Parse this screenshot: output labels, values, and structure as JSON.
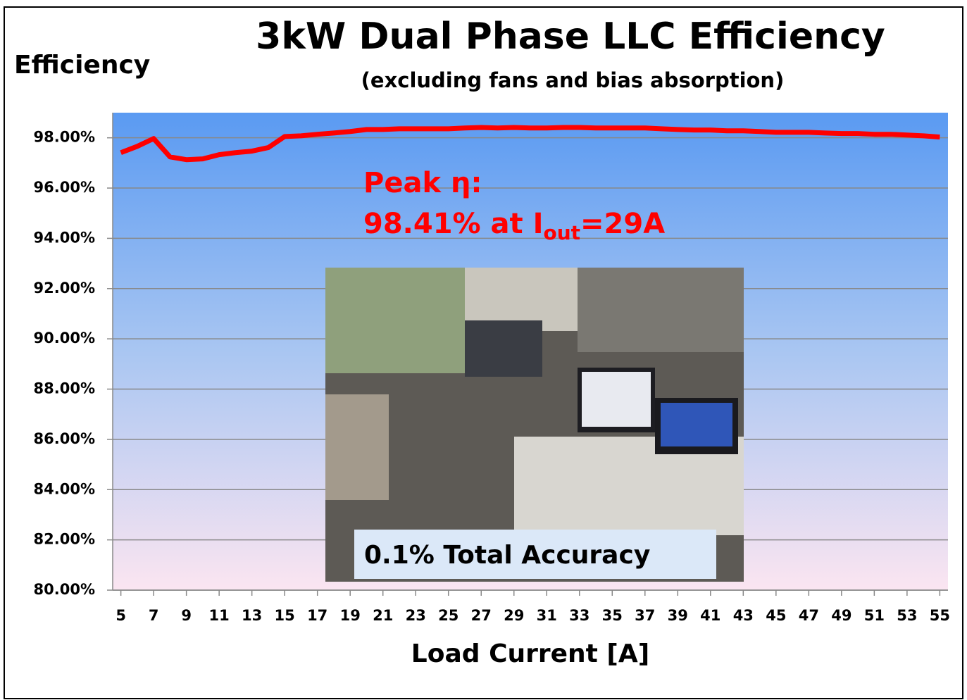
{
  "chart_data": {
    "type": "line",
    "title": "3kW Dual Phase LLC Efficiency",
    "subtitle": "(excluding fans and bias absorption)",
    "y_label": "Efficiency",
    "x_label": "Load Current [A]",
    "annotations": {
      "peak_label": "Peak η:",
      "peak_value": "98.41% at I",
      "peak_sub": "out",
      "peak_end": "=29A",
      "photo_caption": "0.1% Total Accuracy"
    },
    "x": [
      5,
      6,
      7,
      8,
      9,
      10,
      11,
      12,
      13,
      14,
      15,
      16,
      17,
      18,
      19,
      20,
      21,
      22,
      23,
      24,
      25,
      26,
      27,
      28,
      29,
      30,
      31,
      32,
      33,
      34,
      35,
      36,
      37,
      38,
      39,
      40,
      41,
      42,
      43,
      44,
      45,
      46,
      47,
      48,
      49,
      50,
      51,
      52,
      53,
      54,
      55
    ],
    "series": [
      {
        "name": "Efficiency",
        "color": "#ff0000",
        "values": [
          97.41,
          97.66,
          97.97,
          97.24,
          97.13,
          97.16,
          97.33,
          97.41,
          97.47,
          97.61,
          98.05,
          98.08,
          98.14,
          98.19,
          98.25,
          98.33,
          98.33,
          98.36,
          98.36,
          98.36,
          98.36,
          98.39,
          98.41,
          98.39,
          98.41,
          98.39,
          98.39,
          98.41,
          98.41,
          98.39,
          98.39,
          98.39,
          98.39,
          98.36,
          98.33,
          98.31,
          98.31,
          98.28,
          98.28,
          98.25,
          98.22,
          98.22,
          98.22,
          98.19,
          98.17,
          98.17,
          98.14,
          98.14,
          98.11,
          98.08,
          98.03
        ]
      }
    ],
    "xlim": [
      4.5,
      55.5
    ],
    "xticks": [
      5,
      7,
      9,
      11,
      13,
      15,
      17,
      19,
      21,
      23,
      25,
      27,
      29,
      31,
      33,
      35,
      37,
      39,
      41,
      43,
      45,
      47,
      49,
      51,
      53,
      55
    ],
    "ylim": [
      80,
      99
    ],
    "yticks": [
      {
        "value": 80,
        "label": "80.00%"
      },
      {
        "value": 82,
        "label": "82.00%"
      },
      {
        "value": 84,
        "label": "84.00%"
      },
      {
        "value": 86,
        "label": "86.00%"
      },
      {
        "value": 88,
        "label": "88.00%"
      },
      {
        "value": 90,
        "label": "90.00%"
      },
      {
        "value": 92,
        "label": "92.00%"
      },
      {
        "value": 94,
        "label": "94.00%"
      },
      {
        "value": 96,
        "label": "96.00%"
      },
      {
        "value": 98,
        "label": "98.00%"
      }
    ],
    "grid": true
  }
}
